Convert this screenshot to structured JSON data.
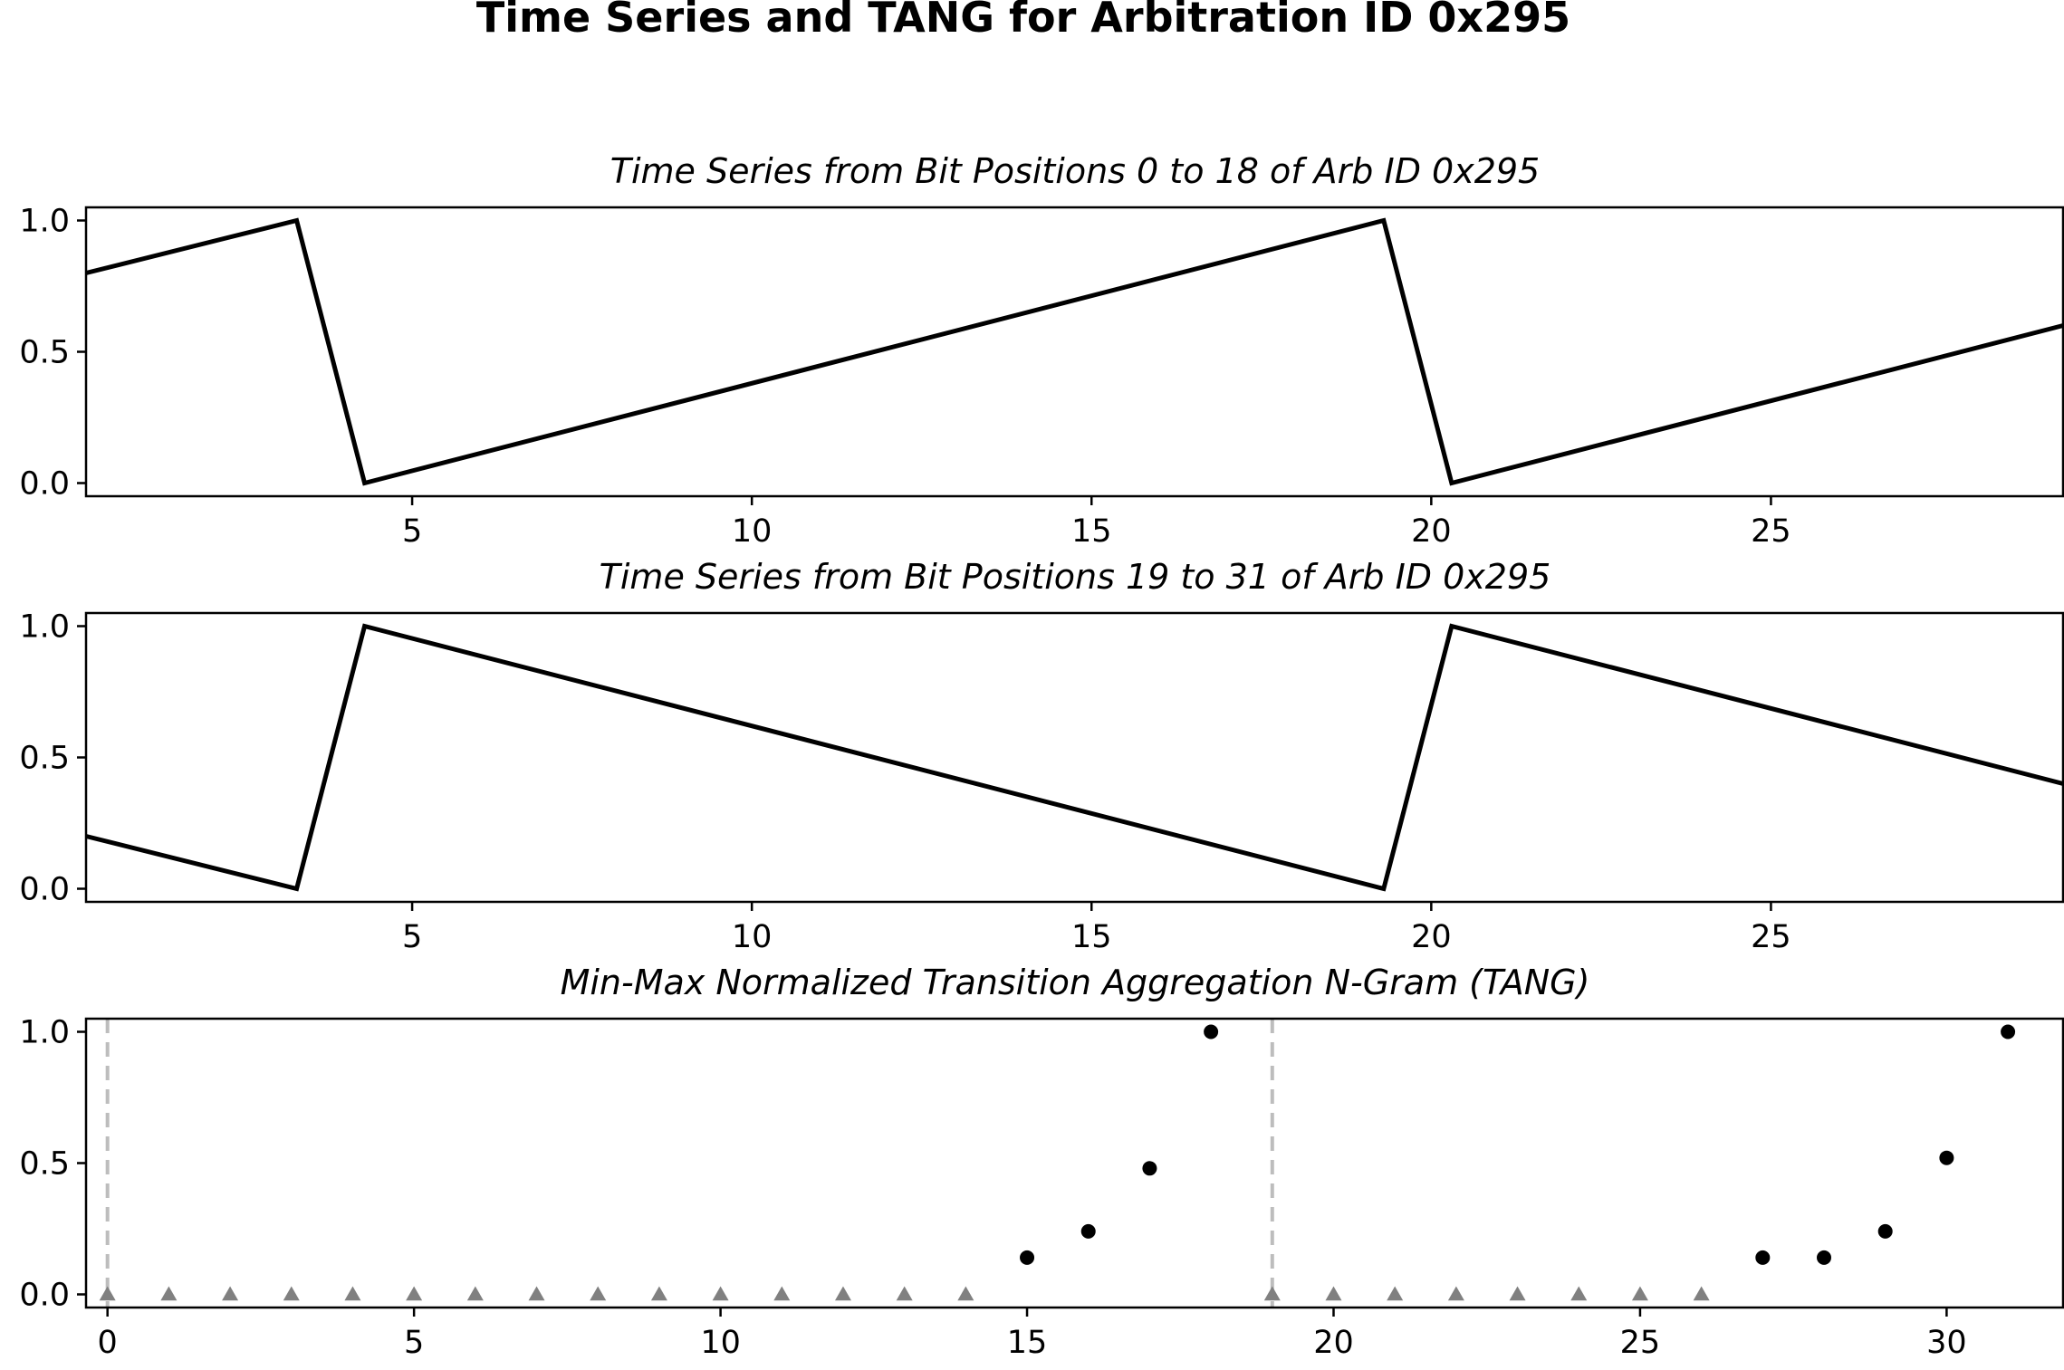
{
  "title": "Time Series and TANG for Arbitration ID 0x295",
  "chart_data": [
    {
      "type": "line",
      "title": "Time Series from Bit Positions 0 to 18 of Arb ID 0x295",
      "xlim": [
        0.2,
        29.3
      ],
      "ylim": [
        -0.05,
        1.05
      ],
      "xticks": [
        5,
        10,
        15,
        20,
        25
      ],
      "yticks": [
        0.0,
        0.5,
        1.0
      ],
      "tick_labels_x": [
        "5",
        "10",
        "15",
        "20",
        "25"
      ],
      "tick_labels_y": [
        "0.0",
        "0.5",
        "1.0"
      ],
      "color": "#000000",
      "points": [
        [
          0.2,
          0.8
        ],
        [
          3.3,
          1.0
        ],
        [
          4.3,
          0.0
        ],
        [
          19.3,
          1.0
        ],
        [
          20.3,
          0.0
        ],
        [
          29.3,
          0.6
        ]
      ]
    },
    {
      "type": "line",
      "title": "Time Series from Bit Positions 19 to 31 of Arb ID 0x295",
      "xlim": [
        0.2,
        29.3
      ],
      "ylim": [
        -0.05,
        1.05
      ],
      "xticks": [
        5,
        10,
        15,
        20,
        25
      ],
      "yticks": [
        0.0,
        0.5,
        1.0
      ],
      "tick_labels_x": [
        "5",
        "10",
        "15",
        "20",
        "25"
      ],
      "tick_labels_y": [
        "0.0",
        "0.5",
        "1.0"
      ],
      "color": "#000000",
      "points": [
        [
          0.2,
          0.2
        ],
        [
          3.3,
          0.0
        ],
        [
          4.3,
          1.0
        ],
        [
          19.3,
          0.0
        ],
        [
          20.3,
          1.0
        ],
        [
          29.3,
          0.4
        ]
      ]
    },
    {
      "type": "scatter",
      "title": "Min-Max Normalized Transition Aggregation N-Gram (TANG)",
      "xlim": [
        -0.35,
        31.9
      ],
      "ylim": [
        -0.05,
        1.05
      ],
      "xticks": [
        0,
        5,
        10,
        15,
        20,
        25,
        30
      ],
      "yticks": [
        0.0,
        0.5,
        1.0
      ],
      "tick_labels_x": [
        "0",
        "5",
        "10",
        "15",
        "20",
        "25",
        "30"
      ],
      "tick_labels_y": [
        "0.0",
        "0.5",
        "1.0"
      ],
      "boundaries": [
        0,
        19
      ],
      "boundary_color": "#bdbdbd",
      "zero_marker_color": "#808080",
      "point_color": "#000000",
      "zero_points": [
        0,
        1,
        2,
        3,
        4,
        5,
        6,
        7,
        8,
        9,
        10,
        11,
        12,
        13,
        14,
        19,
        20,
        21,
        22,
        23,
        24,
        25,
        26
      ],
      "points": [
        [
          15,
          0.14
        ],
        [
          16,
          0.24
        ],
        [
          17,
          0.48
        ],
        [
          18,
          1.0
        ],
        [
          27,
          0.14
        ],
        [
          28,
          0.14
        ],
        [
          29,
          0.24
        ],
        [
          30,
          0.52
        ],
        [
          31,
          1.0
        ]
      ]
    }
  ]
}
